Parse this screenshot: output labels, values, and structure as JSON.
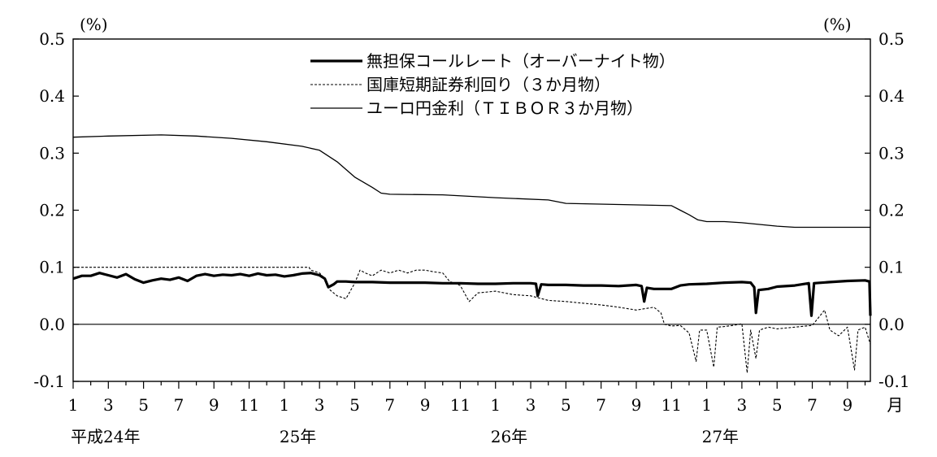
{
  "chart_data": {
    "type": "line",
    "title": "",
    "y_unit_left": "(%)",
    "y_unit_right": "(%)",
    "ylim": [
      -0.1,
      0.5
    ],
    "y_ticks": [
      "0.5",
      "0.4",
      "0.3",
      "0.2",
      "0.1",
      "0.0",
      "-0.1"
    ],
    "y_tick_values": [
      0.5,
      0.4,
      0.3,
      0.2,
      0.1,
      0.0,
      -0.1
    ],
    "x_tick_labels": [
      "1",
      "3",
      "5",
      "7",
      "9",
      "11",
      "1",
      "3",
      "5",
      "7",
      "9",
      "11",
      "1",
      "3",
      "5",
      "7",
      "9",
      "11",
      "1",
      "3",
      "5",
      "7",
      "9"
    ],
    "x_month_suffix": "月",
    "year_labels": [
      {
        "label": "平成24年",
        "month_index": 0
      },
      {
        "label": "25年",
        "month_index": 12
      },
      {
        "label": "26年",
        "month_index": 24
      },
      {
        "label": "27年",
        "month_index": 36
      }
    ],
    "x_range_months": [
      0,
      45.3
    ],
    "legend_position": "top-center",
    "grid": false,
    "series": [
      {
        "name": "無担保コールレート（オーバーナイト物）",
        "style": "thick",
        "color": "#000000",
        "points": [
          [
            0,
            0.08
          ],
          [
            0.5,
            0.085
          ],
          [
            1,
            0.085
          ],
          [
            1.5,
            0.09
          ],
          [
            2,
            0.086
          ],
          [
            2.5,
            0.082
          ],
          [
            3,
            0.088
          ],
          [
            3.5,
            0.079
          ],
          [
            4,
            0.073
          ],
          [
            4.5,
            0.077
          ],
          [
            5,
            0.08
          ],
          [
            5.5,
            0.078
          ],
          [
            6,
            0.082
          ],
          [
            6.5,
            0.076
          ],
          [
            7,
            0.085
          ],
          [
            7.5,
            0.088
          ],
          [
            8,
            0.085
          ],
          [
            8.5,
            0.087
          ],
          [
            9,
            0.086
          ],
          [
            9.5,
            0.088
          ],
          [
            10,
            0.085
          ],
          [
            10.5,
            0.089
          ],
          [
            11,
            0.086
          ],
          [
            11.5,
            0.087
          ],
          [
            12,
            0.084
          ],
          [
            12.5,
            0.086
          ],
          [
            13,
            0.089
          ],
          [
            13.5,
            0.09
          ],
          [
            14,
            0.086
          ],
          [
            14.3,
            0.08
          ],
          [
            14.5,
            0.065
          ],
          [
            14.8,
            0.07
          ],
          [
            15,
            0.075
          ],
          [
            15.5,
            0.075
          ],
          [
            16,
            0.074
          ],
          [
            17,
            0.074
          ],
          [
            18,
            0.073
          ],
          [
            19,
            0.073
          ],
          [
            20,
            0.073
          ],
          [
            21,
            0.072
          ],
          [
            22,
            0.072
          ],
          [
            23,
            0.071
          ],
          [
            24,
            0.071
          ],
          [
            25,
            0.072
          ],
          [
            26,
            0.072
          ],
          [
            26.3,
            0.071
          ],
          [
            26.4,
            0.05
          ],
          [
            26.6,
            0.07
          ],
          [
            27,
            0.069
          ],
          [
            28,
            0.069
          ],
          [
            29,
            0.068
          ],
          [
            30,
            0.068
          ],
          [
            31,
            0.067
          ],
          [
            32,
            0.069
          ],
          [
            32.3,
            0.067
          ],
          [
            32.45,
            0.04
          ],
          [
            32.6,
            0.064
          ],
          [
            33,
            0.062
          ],
          [
            34,
            0.062
          ],
          [
            34.5,
            0.068
          ],
          [
            35,
            0.07
          ],
          [
            36,
            0.071
          ],
          [
            37,
            0.073
          ],
          [
            38,
            0.074
          ],
          [
            38.5,
            0.073
          ],
          [
            38.7,
            0.065
          ],
          [
            38.8,
            0.02
          ],
          [
            38.95,
            0.06
          ],
          [
            39.5,
            0.062
          ],
          [
            40,
            0.066
          ],
          [
            41,
            0.068
          ],
          [
            41.8,
            0.072
          ],
          [
            41.95,
            0.015
          ],
          [
            42.1,
            0.072
          ],
          [
            43,
            0.074
          ],
          [
            44,
            0.076
          ],
          [
            45,
            0.077
          ],
          [
            45.25,
            0.075
          ],
          [
            45.3,
            0.015
          ]
        ]
      },
      {
        "name": "国庫短期証券利回り（３か月物）",
        "style": "dashed",
        "color": "#000000",
        "points": [
          [
            0,
            0.1
          ],
          [
            4,
            0.1
          ],
          [
            8,
            0.1
          ],
          [
            12,
            0.1
          ],
          [
            13.4,
            0.1
          ],
          [
            13.5,
            0.095
          ],
          [
            14,
            0.09
          ],
          [
            14.3,
            0.08
          ],
          [
            14.6,
            0.06
          ],
          [
            15,
            0.05
          ],
          [
            15.5,
            0.045
          ],
          [
            16,
            0.072
          ],
          [
            16.3,
            0.095
          ],
          [
            16.6,
            0.09
          ],
          [
            17,
            0.085
          ],
          [
            17.5,
            0.095
          ],
          [
            18,
            0.09
          ],
          [
            18.5,
            0.095
          ],
          [
            19,
            0.09
          ],
          [
            19.5,
            0.095
          ],
          [
            20,
            0.095
          ],
          [
            20.5,
            0.092
          ],
          [
            21,
            0.09
          ],
          [
            21.4,
            0.075
          ],
          [
            22,
            0.068
          ],
          [
            22.5,
            0.04
          ],
          [
            23,
            0.055
          ],
          [
            24,
            0.058
          ],
          [
            25,
            0.052
          ],
          [
            26,
            0.05
          ],
          [
            27,
            0.042
          ],
          [
            28,
            0.04
          ],
          [
            29,
            0.037
          ],
          [
            30,
            0.034
          ],
          [
            31,
            0.03
          ],
          [
            32,
            0.025
          ],
          [
            33,
            0.03
          ],
          [
            33.4,
            0.02
          ],
          [
            33.6,
            0.0
          ],
          [
            34,
            -0.003
          ],
          [
            34.5,
            -0.002
          ],
          [
            35,
            -0.015
          ],
          [
            35.4,
            -0.065
          ],
          [
            35.6,
            -0.01
          ],
          [
            36,
            -0.01
          ],
          [
            36.4,
            -0.075
          ],
          [
            36.6,
            -0.005
          ],
          [
            37,
            -0.004
          ],
          [
            37.5,
            -0.002
          ],
          [
            38,
            0.001
          ],
          [
            38.3,
            -0.085
          ],
          [
            38.5,
            -0.01
          ],
          [
            38.8,
            -0.06
          ],
          [
            39,
            -0.01
          ],
          [
            39.5,
            -0.005
          ],
          [
            40,
            -0.008
          ],
          [
            41,
            -0.005
          ],
          [
            42,
            -0.002
          ],
          [
            42.7,
            0.025
          ],
          [
            43,
            -0.01
          ],
          [
            43.5,
            -0.02
          ],
          [
            44,
            -0.005
          ],
          [
            44.4,
            -0.08
          ],
          [
            44.6,
            -0.01
          ],
          [
            45,
            -0.005
          ],
          [
            45.3,
            -0.035
          ]
        ]
      },
      {
        "name": "ユーロ円金利（ＴＩＢＯＲ３か月物）",
        "style": "thin",
        "color": "#000000",
        "points": [
          [
            0,
            0.328
          ],
          [
            2,
            0.33
          ],
          [
            5,
            0.332
          ],
          [
            7,
            0.33
          ],
          [
            9,
            0.326
          ],
          [
            11,
            0.32
          ],
          [
            13,
            0.312
          ],
          [
            14,
            0.305
          ],
          [
            15,
            0.285
          ],
          [
            16,
            0.258
          ],
          [
            17,
            0.24
          ],
          [
            17.5,
            0.23
          ],
          [
            18,
            0.228
          ],
          [
            21,
            0.227
          ],
          [
            24,
            0.222
          ],
          [
            27,
            0.218
          ],
          [
            28,
            0.212
          ],
          [
            31,
            0.21
          ],
          [
            34,
            0.208
          ],
          [
            34.5,
            0.2
          ],
          [
            35,
            0.192
          ],
          [
            35.5,
            0.183
          ],
          [
            36,
            0.18
          ],
          [
            37,
            0.18
          ],
          [
            38,
            0.178
          ],
          [
            39,
            0.175
          ],
          [
            40,
            0.172
          ],
          [
            41,
            0.17
          ],
          [
            43,
            0.17
          ],
          [
            45.3,
            0.17
          ]
        ]
      }
    ]
  }
}
